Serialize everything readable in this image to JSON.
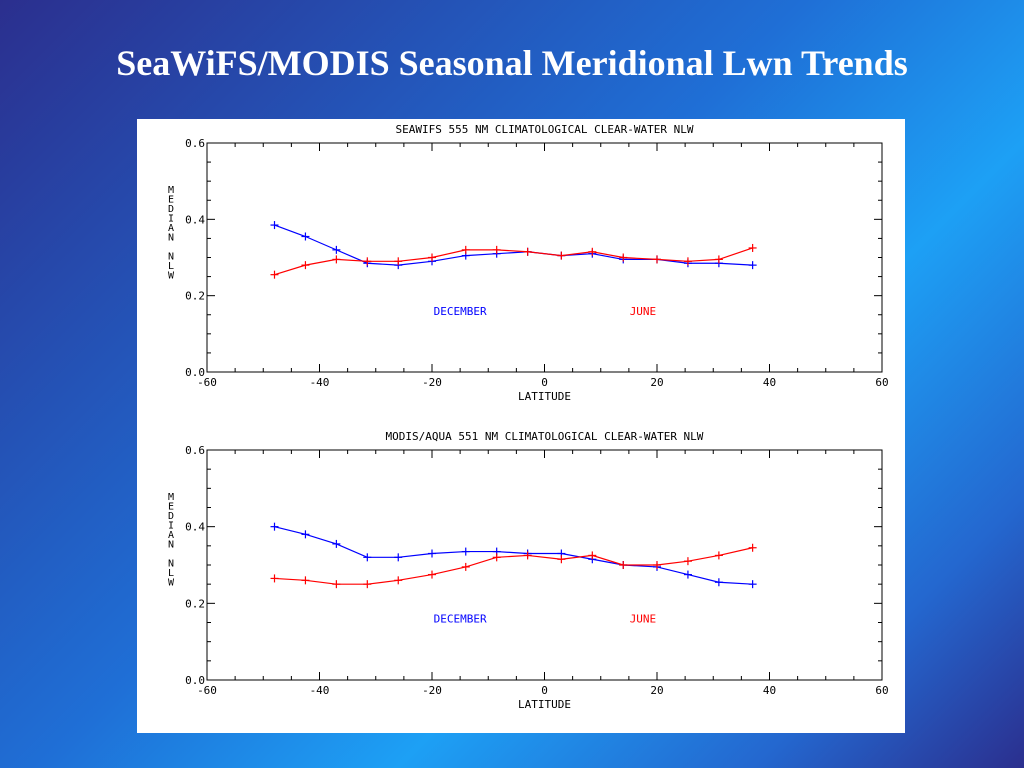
{
  "slide": {
    "title": "SeaWiFS/MODIS Seasonal Meridional Lwn Trends"
  },
  "colors": {
    "december": "#0000ff",
    "june": "#ff0000",
    "axis": "#000000",
    "background_panel": "#ffffff"
  },
  "chart_data": [
    {
      "type": "line",
      "title": "SEAWIFS 555 NM CLIMATOLOGICAL CLEAR-WATER NLW",
      "xlabel": "LATITUDE",
      "ylabel": "MEDIAN NLW",
      "xlim": [
        -60,
        60
      ],
      "ylim": [
        0.0,
        0.6
      ],
      "xticks": [
        "-60",
        "-40",
        "-20",
        "0",
        "20",
        "40",
        "60"
      ],
      "yticks": [
        "0.0",
        "0.2",
        "0.4",
        "0.6"
      ],
      "grid": false,
      "x": [
        -48,
        -42.5,
        -37,
        -31.5,
        -26,
        -20,
        -14,
        -8.5,
        -3,
        3,
        8.5,
        14,
        20,
        25.5,
        31,
        37
      ],
      "series": [
        {
          "name": "DECEMBER",
          "color": "#0000ff",
          "values": [
            0.385,
            0.355,
            0.32,
            0.285,
            0.28,
            0.29,
            0.305,
            0.31,
            0.315,
            0.305,
            0.31,
            0.295,
            0.295,
            0.285,
            0.285,
            0.28
          ]
        },
        {
          "name": "JUNE",
          "color": "#ff0000",
          "values": [
            0.255,
            0.28,
            0.295,
            0.29,
            0.29,
            0.3,
            0.32,
            0.32,
            0.315,
            0.305,
            0.315,
            0.3,
            0.295,
            0.29,
            0.295,
            0.325
          ]
        }
      ],
      "labels": [
        {
          "text": "DECEMBER",
          "color": "#0000ff",
          "x": -15,
          "y": 0.15
        },
        {
          "text": "JUNE",
          "color": "#ff0000",
          "x": 17.5,
          "y": 0.15
        }
      ]
    },
    {
      "type": "line",
      "title": "MODIS/AQUA 551 NM CLIMATOLOGICAL CLEAR-WATER NLW",
      "xlabel": "LATITUDE",
      "ylabel": "MEDIAN NLW",
      "xlim": [
        -60,
        60
      ],
      "ylim": [
        0.0,
        0.6
      ],
      "xticks": [
        "-60",
        "-40",
        "-20",
        "0",
        "20",
        "40",
        "60"
      ],
      "yticks": [
        "0.0",
        "0.2",
        "0.4",
        "0.6"
      ],
      "grid": false,
      "x": [
        -48,
        -42.5,
        -37,
        -31.5,
        -26,
        -20,
        -14,
        -8.5,
        -3,
        3,
        8.5,
        14,
        20,
        25.5,
        31,
        37
      ],
      "series": [
        {
          "name": "DECEMBER",
          "color": "#0000ff",
          "values": [
            0.4,
            0.38,
            0.355,
            0.32,
            0.32,
            0.33,
            0.335,
            0.335,
            0.33,
            0.33,
            0.315,
            0.3,
            0.295,
            0.275,
            0.255,
            0.25
          ]
        },
        {
          "name": "JUNE",
          "color": "#ff0000",
          "values": [
            0.265,
            0.26,
            0.25,
            0.25,
            0.26,
            0.275,
            0.295,
            0.32,
            0.325,
            0.315,
            0.325,
            0.3,
            0.3,
            0.31,
            0.325,
            0.345
          ]
        }
      ],
      "labels": [
        {
          "text": "DECEMBER",
          "color": "#0000ff",
          "x": -15,
          "y": 0.15
        },
        {
          "text": "JUNE",
          "color": "#ff0000",
          "x": 17.5,
          "y": 0.15
        }
      ]
    }
  ]
}
